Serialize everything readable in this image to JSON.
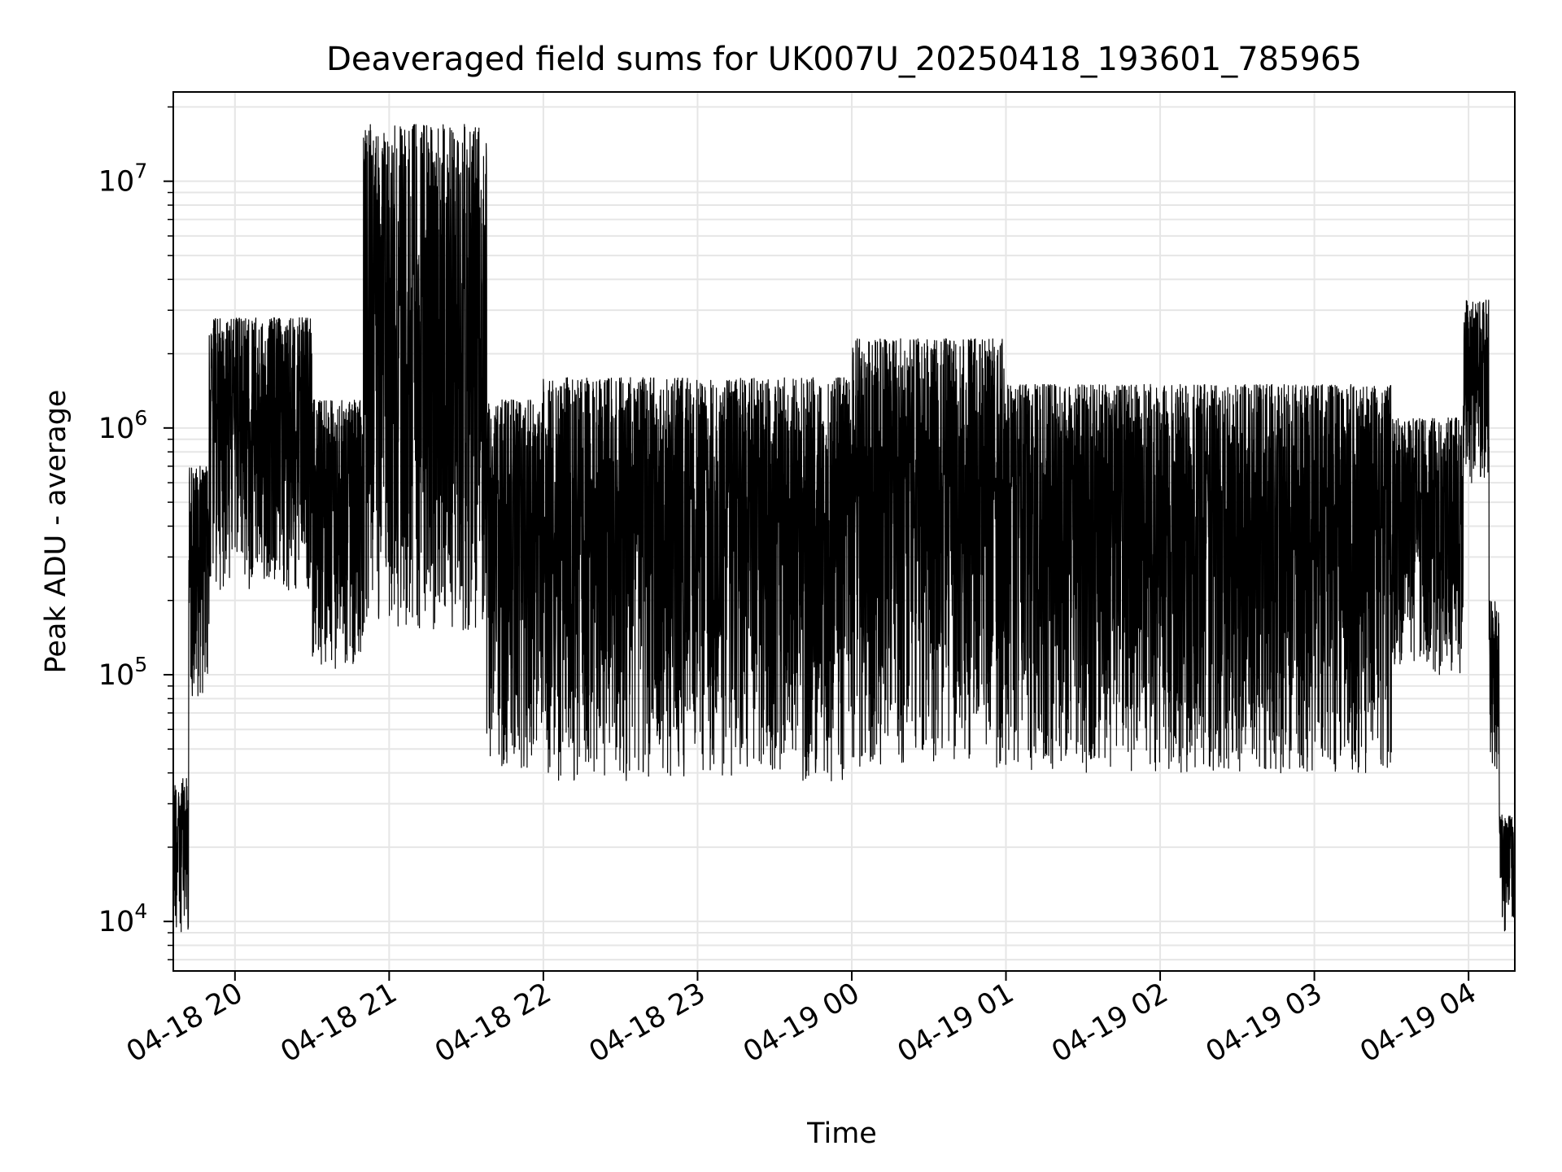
{
  "chart_data": {
    "type": "line",
    "title": "Deaveraged field sums for UK007U_20250418_193601_785965",
    "xlabel": "Time",
    "ylabel": "Peak ADU - average",
    "y_scale": "log",
    "ylim": [
      6300,
      23000000
    ],
    "xlim": [
      "2025-04-18 19:36",
      "2025-04-19 04:18"
    ],
    "grid": "on (major and minor)",
    "x_ticks": [
      "2025-04-18 20:00",
      "2025-04-18 21:00",
      "2025-04-18 22:00",
      "2025-04-18 23:00",
      "2025-04-19 00:00",
      "2025-04-19 01:00",
      "2025-04-19 02:00",
      "2025-04-19 03:00",
      "2025-04-19 04:00"
    ],
    "x_tick_labels": [
      "04-18 20",
      "04-18 21",
      "04-18 22",
      "04-18 23",
      "04-19 00",
      "04-19 01",
      "04-19 02",
      "04-19 03",
      "04-19 04"
    ],
    "y_ticks": [
      {
        "value": 10000,
        "base": "10",
        "exp": "4"
      },
      {
        "value": 100000,
        "base": "10",
        "exp": "5"
      },
      {
        "value": 1000000,
        "base": "10",
        "exp": "6"
      },
      {
        "value": 10000000,
        "base": "10",
        "exp": "7"
      }
    ],
    "series": [
      {
        "color": "#000000",
        "segments": [
          {
            "start": "2025-04-18 19:36",
            "end": "2025-04-18 19:42",
            "low": 9000,
            "high": 38000
          },
          {
            "start": "2025-04-18 19:42",
            "end": "2025-04-18 19:50",
            "low": 80000,
            "high": 700000
          },
          {
            "start": "2025-04-18 19:50",
            "end": "2025-04-18 20:30",
            "low": 220000,
            "high": 2800000
          },
          {
            "start": "2025-04-18 20:30",
            "end": "2025-04-18 20:50",
            "low": 105000,
            "high": 1300000
          },
          {
            "start": "2025-04-18 20:50",
            "end": "2025-04-18 21:38",
            "low": 150000,
            "high": 17000000
          },
          {
            "start": "2025-04-18 21:38",
            "end": "2025-04-18 22:00",
            "low": 42000,
            "high": 1300000
          },
          {
            "start": "2025-04-18 22:00",
            "end": "2025-04-19 00:00",
            "low": 37000,
            "high": 1600000
          },
          {
            "start": "2025-04-19 00:00",
            "end": "2025-04-19 01:00",
            "low": 42000,
            "high": 2300000
          },
          {
            "start": "2025-04-19 01:00",
            "end": "2025-04-19 03:30",
            "low": 40000,
            "high": 1500000
          },
          {
            "start": "2025-04-19 03:30",
            "end": "2025-04-19 03:58",
            "low": 100000,
            "high": 1100000
          },
          {
            "start": "2025-04-19 03:58",
            "end": "2025-04-19 04:08",
            "low": 600000,
            "high": 3300000
          },
          {
            "start": "2025-04-19 04:08",
            "end": "2025-04-19 04:12",
            "low": 40000,
            "high": 200000
          },
          {
            "start": "2025-04-19 04:12",
            "end": "2025-04-19 04:18",
            "low": 9000,
            "high": 27000
          }
        ]
      }
    ]
  }
}
